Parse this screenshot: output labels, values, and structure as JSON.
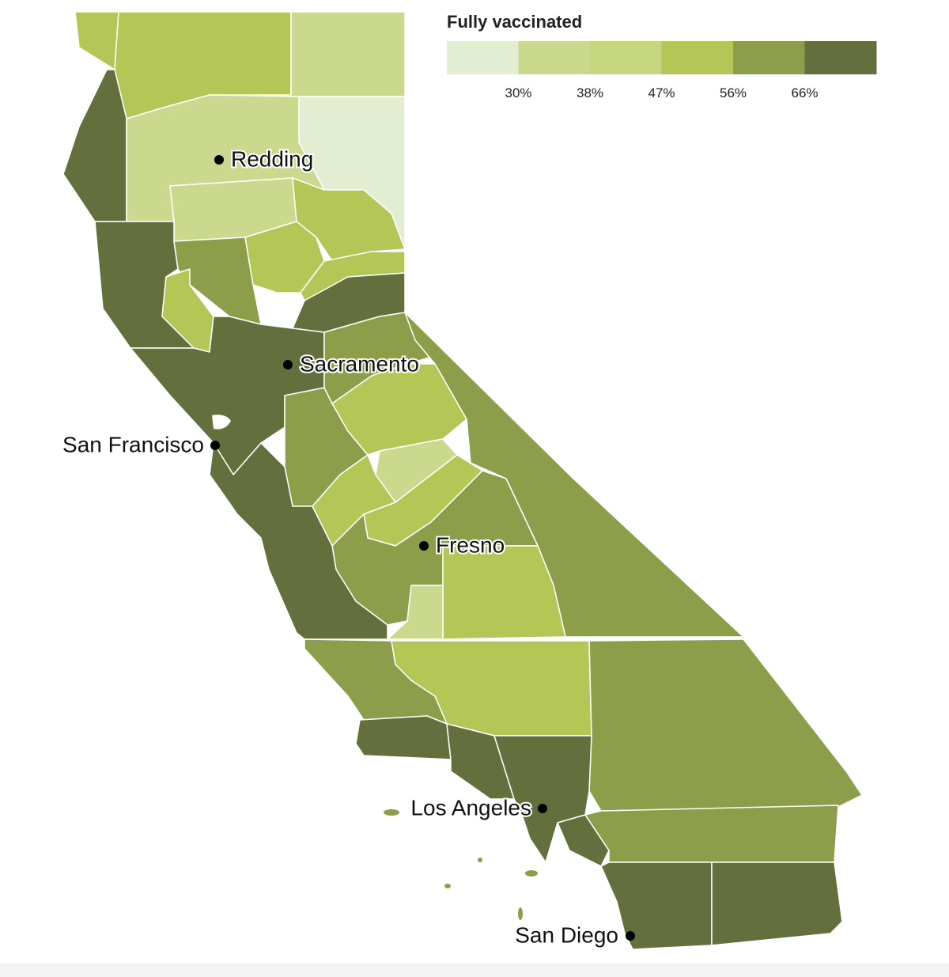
{
  "legend": {
    "title": "Fully vaccinated",
    "colors": [
      "#e3edd1",
      "#cbd98f",
      "#c6d67f",
      "#b3c656",
      "#8c9e49",
      "#636f3c"
    ],
    "labels": [
      "30%",
      "38%",
      "47%",
      "56%",
      "66%"
    ]
  },
  "cities": [
    {
      "name": "Redding"
    },
    {
      "name": "Sacramento"
    },
    {
      "name": "San Francisco"
    },
    {
      "name": "Fresno"
    },
    {
      "name": "Los Angeles"
    },
    {
      "name": "San Diego"
    }
  ]
}
